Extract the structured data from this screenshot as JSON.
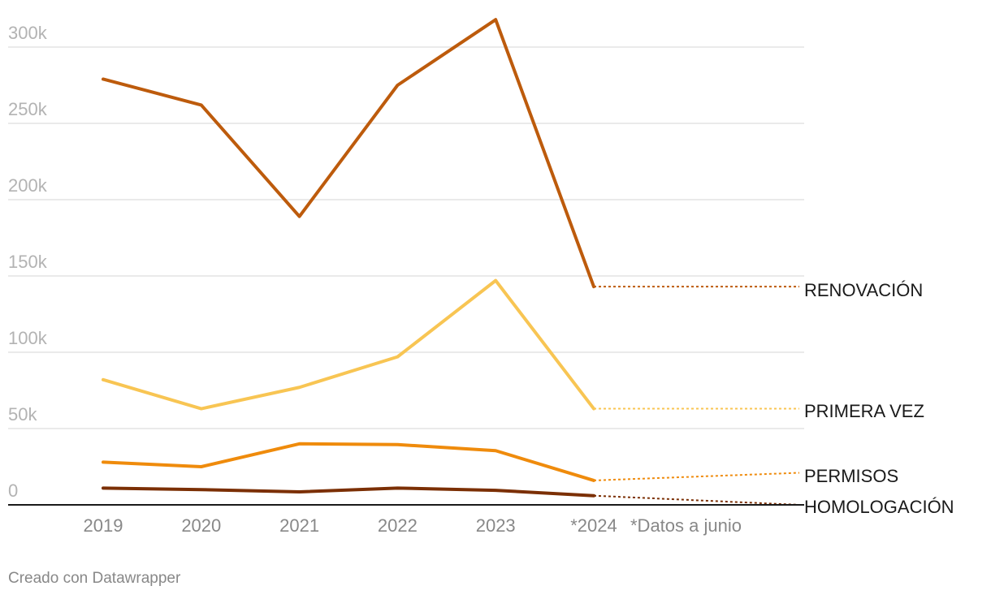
{
  "chart_data": {
    "type": "line",
    "x": [
      "2019",
      "2020",
      "2021",
      "2022",
      "2023",
      "*2024"
    ],
    "x_tick_labels": [
      "2019",
      "2020",
      "2021",
      "2022",
      "2023",
      "*2024"
    ],
    "ylim": [
      0,
      300000
    ],
    "y_ticks": [
      0,
      50000,
      100000,
      150000,
      200000,
      250000,
      300000
    ],
    "y_tick_labels": [
      "0",
      "50k",
      "100k",
      "150k",
      "200k",
      "250k",
      "300k"
    ],
    "grid": true,
    "xlabel": "",
    "ylabel": "",
    "note": "*Datos a junio",
    "series": [
      {
        "name": "RENOVACIÓN",
        "color": "#bd5b0c",
        "values": [
          279000,
          262000,
          189000,
          275000,
          318000,
          143000
        ],
        "label_value": 143000
      },
      {
        "name": "PRIMERA VEZ",
        "color": "#f8c553",
        "values": [
          82000,
          63000,
          77000,
          97000,
          147000,
          63000
        ],
        "label_value": 63000
      },
      {
        "name": "PERMISOS",
        "color": "#ef8b0c",
        "values": [
          28000,
          25000,
          40000,
          39500,
          35500,
          16000
        ],
        "label_value": 21000
      },
      {
        "name": "HOMOLOGACIÓN",
        "color": "#7b2f04",
        "values": [
          11000,
          10000,
          8500,
          11000,
          9500,
          6000
        ],
        "label_value": 0
      }
    ]
  },
  "footer": {
    "credit": "Creado con Datawrapper"
  }
}
